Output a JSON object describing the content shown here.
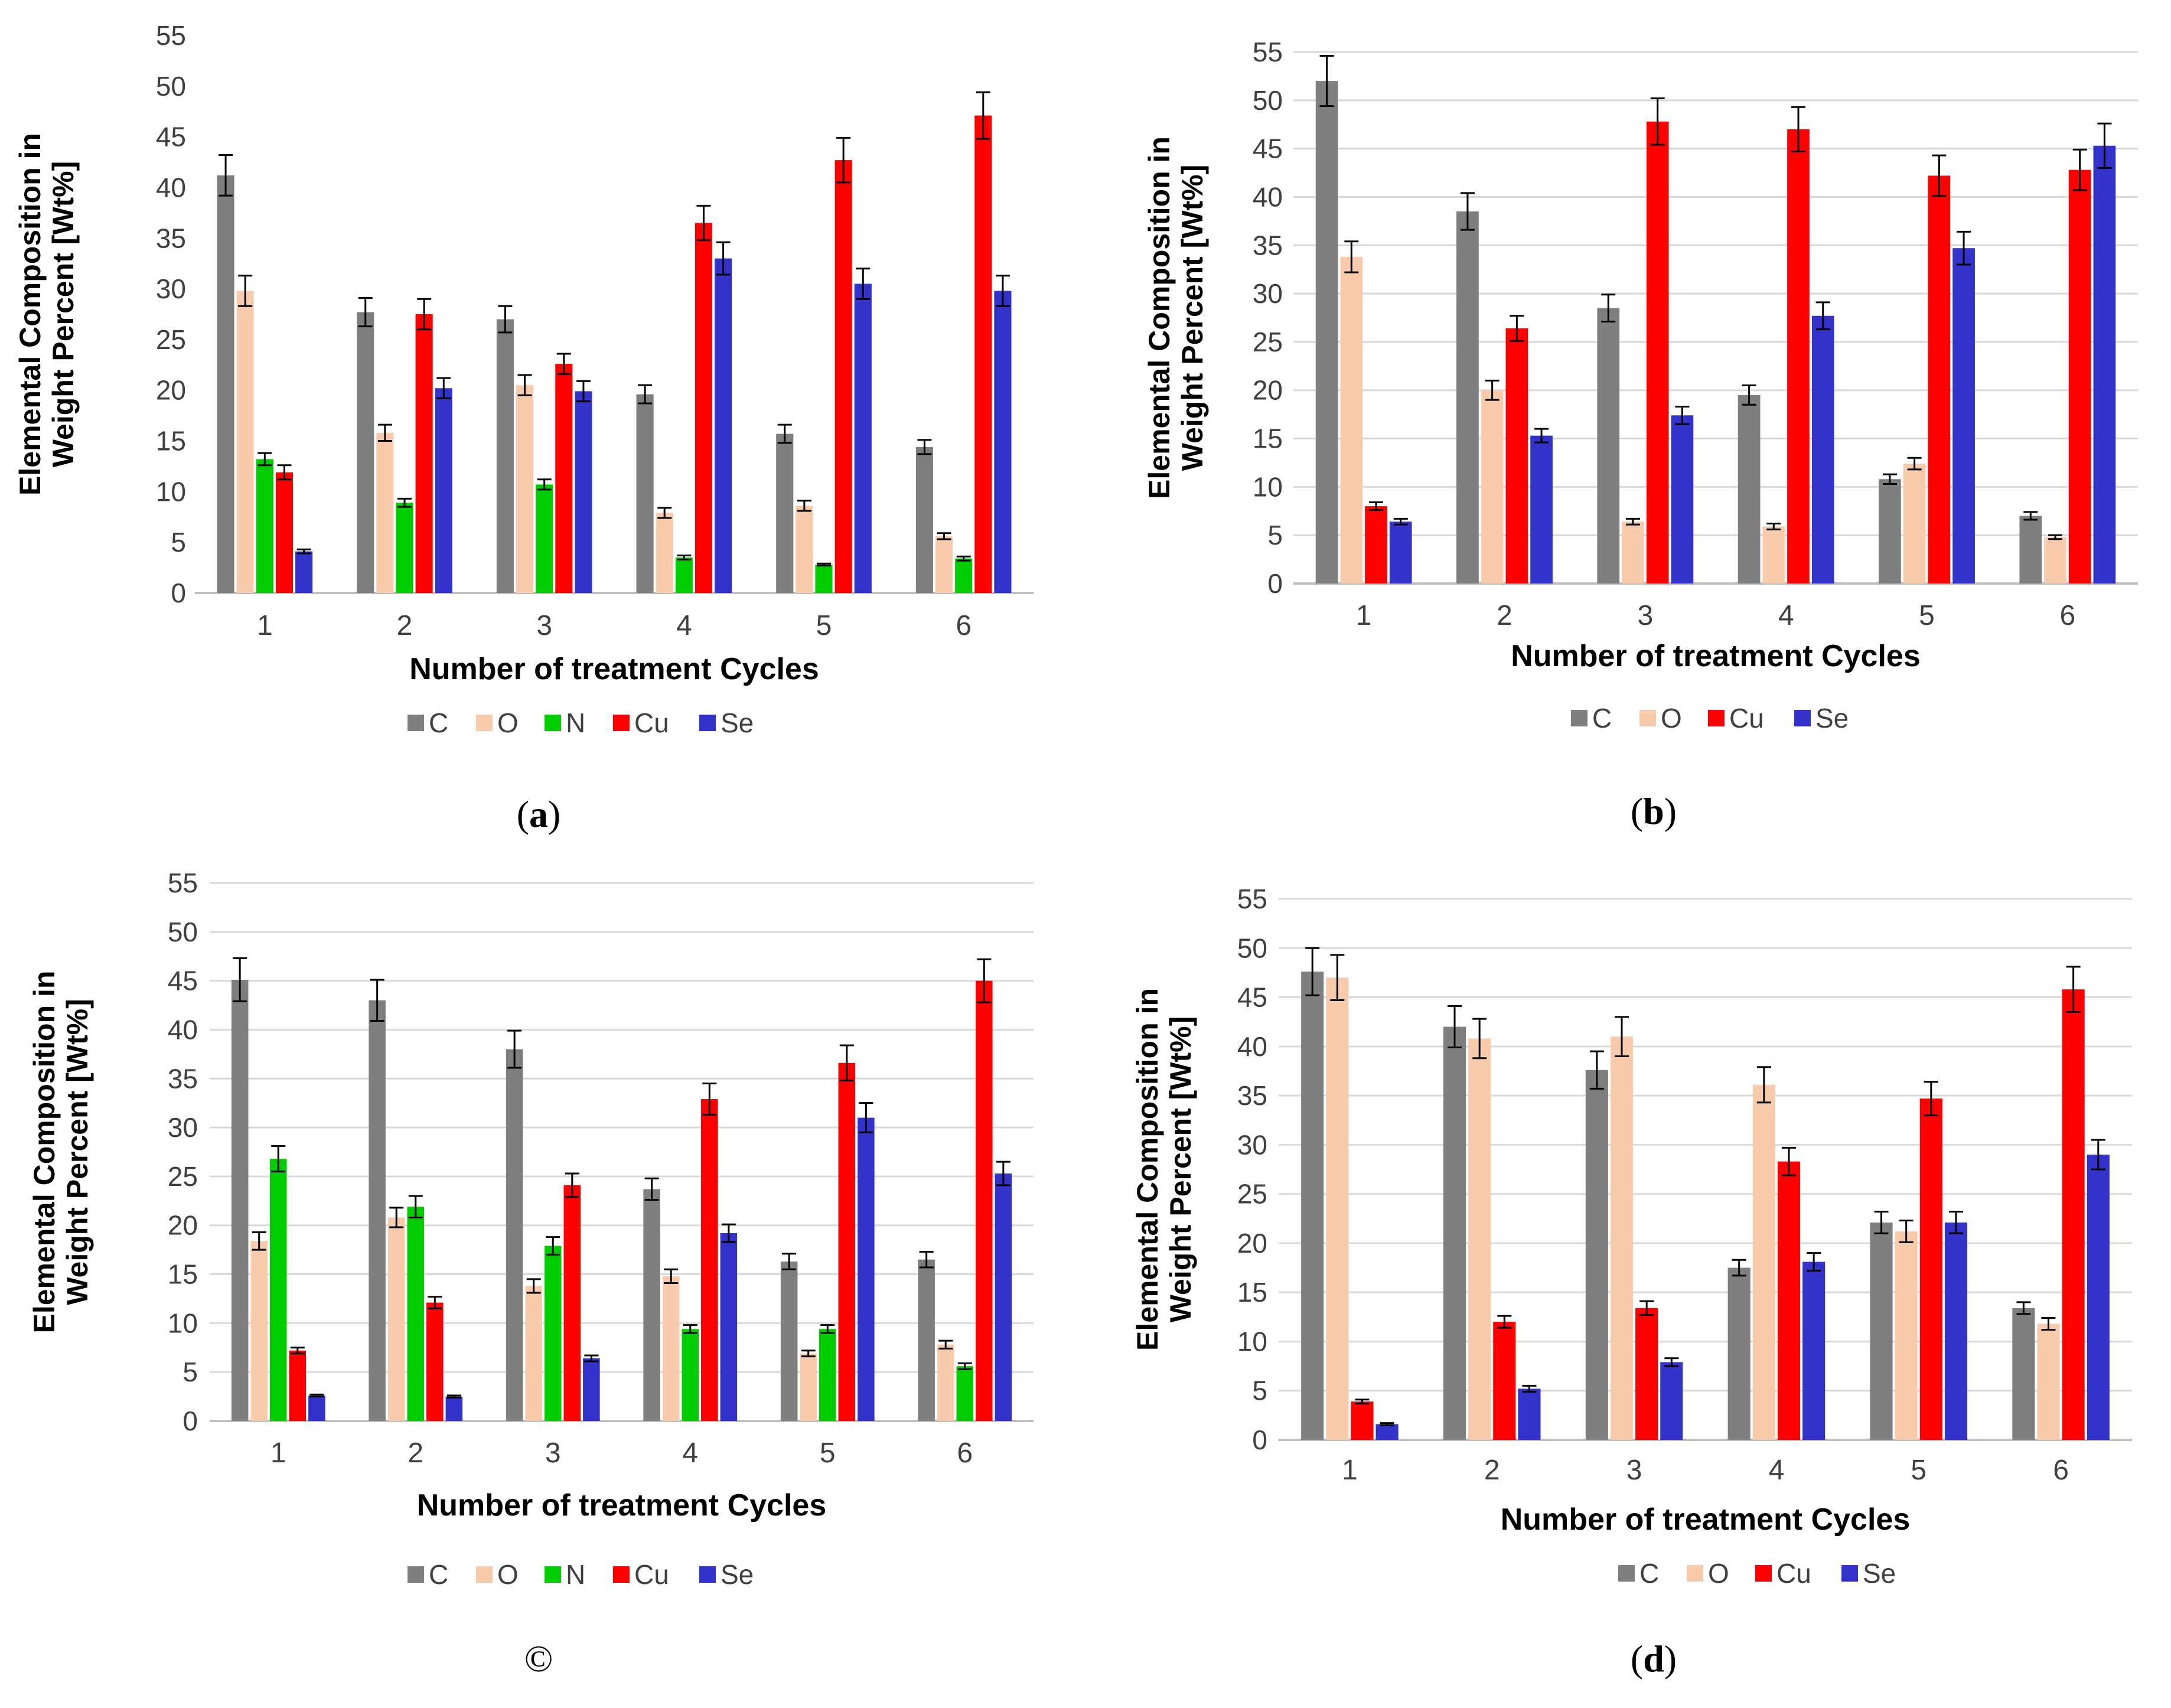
{
  "chart_data": [
    {
      "type": "bar",
      "panel": "(a)",
      "panel_letter": "a",
      "title": "",
      "xlabel": "Number of treatment Cycles",
      "ylabel_line1": "Elemental Composition in",
      "ylabel_line2": "Weight Percent [Wt%]",
      "ylim": [
        0,
        55
      ],
      "yticks": [
        0,
        5,
        10,
        15,
        20,
        25,
        30,
        35,
        40,
        45,
        50,
        55
      ],
      "grid": false,
      "categories": [
        "1",
        "2",
        "3",
        "4",
        "5",
        "6"
      ],
      "series": [
        {
          "name": "C",
          "color": "#7f7f7f",
          "values": [
            41.2,
            27.7,
            27.0,
            19.6,
            15.7,
            14.4
          ],
          "errors": [
            2.0,
            1.4,
            1.3,
            0.9,
            0.9,
            0.7
          ]
        },
        {
          "name": "O",
          "color": "#f8cbad",
          "values": [
            29.8,
            15.8,
            20.5,
            7.9,
            8.6,
            5.6
          ],
          "errors": [
            1.5,
            0.8,
            1.0,
            0.5,
            0.5,
            0.3
          ]
        },
        {
          "name": "N",
          "color": "#00cc00",
          "values": [
            13.2,
            8.9,
            10.7,
            3.5,
            2.8,
            3.4
          ],
          "errors": [
            0.6,
            0.4,
            0.5,
            0.2,
            0.1,
            0.2
          ]
        },
        {
          "name": "Cu",
          "color": "#ff0000",
          "values": [
            11.9,
            27.5,
            22.6,
            36.5,
            42.7,
            47.1
          ],
          "errors": [
            0.7,
            1.5,
            1.0,
            1.7,
            2.2,
            2.3
          ]
        },
        {
          "name": "Se",
          "color": "#3333cc",
          "values": [
            4.1,
            20.2,
            19.9,
            33.0,
            30.5,
            29.8
          ],
          "errors": [
            0.2,
            1.0,
            1.0,
            1.6,
            1.5,
            1.5
          ]
        }
      ]
    },
    {
      "type": "bar",
      "panel": "(b)",
      "panel_letter": "b",
      "title": "",
      "xlabel": "Number of treatment Cycles",
      "ylabel_line1": "Elemental Composition in",
      "ylabel_line2": "Weight Percent [Wt%]",
      "ylim": [
        0,
        55
      ],
      "yticks": [
        0,
        5,
        10,
        15,
        20,
        25,
        30,
        35,
        40,
        45,
        50,
        55
      ],
      "grid": true,
      "categories": [
        "1",
        "2",
        "3",
        "4",
        "5",
        "6"
      ],
      "series": [
        {
          "name": "C",
          "color": "#7f7f7f",
          "values": [
            52.0,
            38.5,
            28.5,
            19.5,
            10.8,
            7.0
          ],
          "errors": [
            2.6,
            1.9,
            1.4,
            1.0,
            0.5,
            0.4
          ]
        },
        {
          "name": "O",
          "color": "#f8cbad",
          "values": [
            33.8,
            20.0,
            6.4,
            5.9,
            12.4,
            4.8
          ],
          "errors": [
            1.6,
            1.0,
            0.3,
            0.3,
            0.6,
            0.2
          ]
        },
        {
          "name": "Cu",
          "color": "#ff0000",
          "values": [
            8.0,
            26.4,
            47.8,
            47.0,
            42.2,
            42.8
          ],
          "errors": [
            0.4,
            1.3,
            2.4,
            2.3,
            2.1,
            2.1
          ]
        },
        {
          "name": "Se",
          "color": "#3333cc",
          "values": [
            6.4,
            15.3,
            17.4,
            27.7,
            34.7,
            45.3
          ],
          "errors": [
            0.3,
            0.7,
            0.9,
            1.4,
            1.7,
            2.3
          ]
        }
      ]
    },
    {
      "type": "bar",
      "panel": "©",
      "panel_letter": "©",
      "title": "",
      "xlabel": "Number of treatment Cycles",
      "ylabel_line1": "Elemental Composition in",
      "ylabel_line2": "Weight Percent [Wt%]",
      "ylim": [
        0,
        55
      ],
      "yticks": [
        0,
        5,
        10,
        15,
        20,
        25,
        30,
        35,
        40,
        45,
        50,
        55
      ],
      "grid": true,
      "categories": [
        "1",
        "2",
        "3",
        "4",
        "5",
        "6"
      ],
      "series": [
        {
          "name": "C",
          "color": "#7f7f7f",
          "values": [
            45.1,
            43.0,
            38.0,
            23.7,
            16.3,
            16.5
          ],
          "errors": [
            2.2,
            2.1,
            1.9,
            1.1,
            0.8,
            0.8
          ]
        },
        {
          "name": "O",
          "color": "#f8cbad",
          "values": [
            18.4,
            20.8,
            13.8,
            14.8,
            6.9,
            7.8
          ],
          "errors": [
            0.9,
            1.0,
            0.7,
            0.7,
            0.3,
            0.4
          ]
        },
        {
          "name": "N",
          "color": "#00cc00",
          "values": [
            26.8,
            21.9,
            17.9,
            9.4,
            9.4,
            5.6
          ],
          "errors": [
            1.3,
            1.1,
            0.9,
            0.4,
            0.4,
            0.3
          ]
        },
        {
          "name": "Cu",
          "color": "#ff0000",
          "values": [
            7.2,
            12.1,
            24.1,
            32.9,
            36.6,
            45.0
          ],
          "errors": [
            0.3,
            0.6,
            1.2,
            1.6,
            1.8,
            2.2
          ]
        },
        {
          "name": "Se",
          "color": "#3333cc",
          "values": [
            2.6,
            2.5,
            6.4,
            19.2,
            31.0,
            25.3
          ],
          "errors": [
            0.1,
            0.1,
            0.3,
            0.9,
            1.5,
            1.2
          ]
        }
      ]
    },
    {
      "type": "bar",
      "panel": "(d)",
      "panel_letter": "d",
      "title": "",
      "xlabel": "Number of treatment Cycles",
      "ylabel_line1": "Elemental Composition in",
      "ylabel_line2": "Weight Percent [Wt%]",
      "ylim": [
        0,
        55
      ],
      "yticks": [
        0,
        5,
        10,
        15,
        20,
        25,
        30,
        35,
        40,
        45,
        50,
        55
      ],
      "grid": true,
      "categories": [
        "1",
        "2",
        "3",
        "4",
        "5",
        "6"
      ],
      "series": [
        {
          "name": "C",
          "color": "#7f7f7f",
          "values": [
            47.6,
            42.0,
            37.6,
            17.5,
            22.1,
            13.4
          ],
          "errors": [
            2.4,
            2.1,
            1.9,
            0.8,
            1.1,
            0.6
          ]
        },
        {
          "name": "O",
          "color": "#f8cbad",
          "values": [
            47.0,
            40.8,
            41.0,
            36.1,
            21.2,
            11.8
          ],
          "errors": [
            2.3,
            2.0,
            2.0,
            1.8,
            1.1,
            0.6
          ]
        },
        {
          "name": "Cu",
          "color": "#ff0000",
          "values": [
            3.9,
            12.0,
            13.4,
            28.3,
            34.7,
            45.8
          ],
          "errors": [
            0.2,
            0.6,
            0.7,
            1.4,
            1.7,
            2.3
          ]
        },
        {
          "name": "Se",
          "color": "#3333cc",
          "values": [
            1.6,
            5.2,
            7.9,
            18.1,
            22.1,
            29.0
          ],
          "errors": [
            0.1,
            0.3,
            0.4,
            0.9,
            1.1,
            1.5
          ]
        }
      ]
    }
  ]
}
